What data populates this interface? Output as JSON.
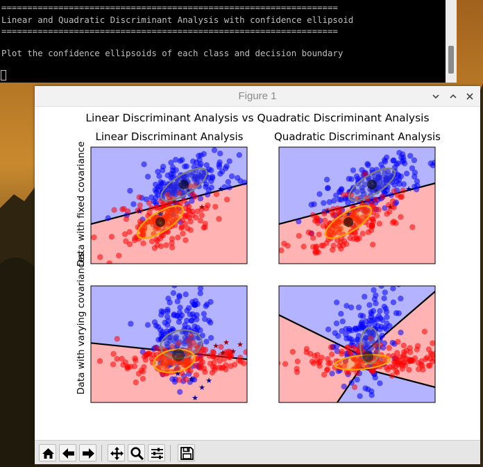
{
  "terminal": {
    "lines": [
      "=================================================================",
      "Linear and Quadratic Discriminant Analysis with confidence ellipsoid",
      "=================================================================",
      "",
      "Plot the confidence ellipsoids of each class and decision boundary"
    ]
  },
  "window": {
    "title": "Figure 1",
    "controls": [
      "minimize-icon",
      "maximize-icon",
      "close-icon"
    ]
  },
  "figure": {
    "suptitle": "Linear Discriminant Analysis vs Quadratic Discriminant Analysis",
    "column_titles": [
      "Linear Discriminant Analysis",
      "Quadratic Discriminant Analysis"
    ],
    "row_labels": [
      "Data with fixed covariance",
      "Data with varying covariances"
    ]
  },
  "toolbar": {
    "buttons": [
      "home-icon",
      "back-icon",
      "forward-icon",
      "pan-icon",
      "zoom-icon",
      "configure-subplots-icon",
      "save-icon"
    ]
  },
  "colors": {
    "class0": "#ff0000",
    "class1": "#0000ff",
    "region0": "#ffb3b3",
    "region1": "#b3b3ff",
    "ellipse0": "#ffa500",
    "ellipse1": "#808080",
    "misclassified0": "#990000",
    "misclassified1": "#000099",
    "terminal_bg": "#000000",
    "terminal_text": "#bfbfbf"
  }
}
